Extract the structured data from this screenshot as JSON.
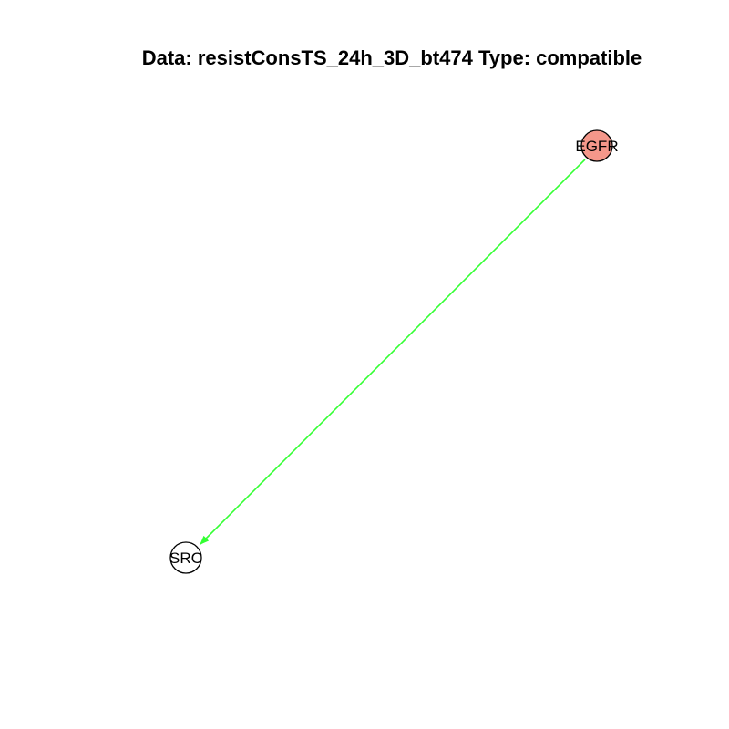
{
  "title": "Data: resistConsTS_24h_3D_bt474 Type: compatible",
  "nodes": [
    {
      "id": "EGFR",
      "label": "EGFR",
      "fill": "#F4978A",
      "stroke": "#000000"
    },
    {
      "id": "SRC",
      "label": "SRC",
      "fill": "#FFFFFF",
      "stroke": "#000000"
    }
  ],
  "edges": [
    {
      "from": "EGFR",
      "to": "SRC",
      "color": "#33FF33",
      "directed": true
    }
  ]
}
